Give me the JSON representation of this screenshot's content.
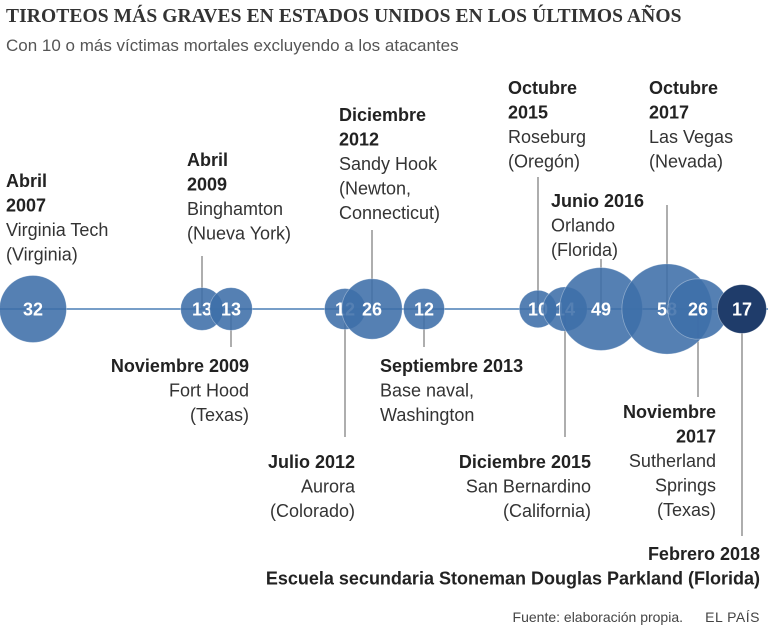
{
  "title": "TIROTEOS MÁS GRAVES EN ESTADOS UNIDOS EN LOS ÚLTIMOS AÑOS",
  "subtitle": "Con 10 o más víctimas mortales excluyendo a los atacantes",
  "footer": {
    "source": "Fuente: elaboración propia.",
    "brand": "EL PAÍS"
  },
  "colors": {
    "bubble": "#3d6ea8",
    "bubble_latest": "#1f3c6a",
    "line": "#4a7fb5",
    "leader": "#777777",
    "text": "#333333"
  },
  "chart_data": {
    "type": "bubble-timeline",
    "title": "TIROTEOS MÁS GRAVES EN ESTADOS UNIDOS EN LOS ÚLTIMOS AÑOS",
    "subtitle": "Con 10 o más víctimas mortales excluyendo a los atacantes",
    "events": [
      {
        "date": "Abril 2007",
        "date_lines": [
          "Abril",
          "2007"
        ],
        "place_lines": [
          "Virginia Tech",
          "(Virginia)"
        ],
        "value": 32,
        "label_pos": "above"
      },
      {
        "date": "Abril 2009",
        "date_lines": [
          "Abril",
          "2009"
        ],
        "place_lines": [
          "Binghamton",
          "(Nueva York)"
        ],
        "value": 13,
        "label_pos": "above"
      },
      {
        "date": "Noviembre 2009",
        "date_lines": [
          "Noviembre 2009"
        ],
        "place_lines": [
          "Fort Hood",
          "(Texas)"
        ],
        "value": 13,
        "label_pos": "below"
      },
      {
        "date": "Julio 2012",
        "date_lines": [
          "Julio 2012"
        ],
        "place_lines": [
          "Aurora",
          "(Colorado)"
        ],
        "value": 12,
        "label_pos": "below"
      },
      {
        "date": "Diciembre 2012",
        "date_lines": [
          "Diciembre",
          "2012"
        ],
        "place_lines": [
          "Sandy Hook",
          "(Newton,",
          "Connecticut)"
        ],
        "value": 26,
        "label_pos": "above"
      },
      {
        "date": "Septiembre 2013",
        "date_lines": [
          "Septiembre 2013"
        ],
        "place_lines": [
          "Base naval,",
          "Washington"
        ],
        "value": 12,
        "label_pos": "below"
      },
      {
        "date": "Octubre 2015",
        "date_lines": [
          "Octubre",
          "2015"
        ],
        "place_lines": [
          "Roseburg",
          "(Oregón)"
        ],
        "value": 10,
        "label_pos": "above"
      },
      {
        "date": "Diciembre 2015",
        "date_lines": [
          "Diciembre 2015"
        ],
        "place_lines": [
          "San Bernardino",
          "(California)"
        ],
        "value": 14,
        "label_pos": "below"
      },
      {
        "date": "Junio 2016",
        "date_lines": [
          "Junio 2016"
        ],
        "place_lines": [
          "Orlando",
          "(Florida)"
        ],
        "value": 49,
        "label_pos": "above"
      },
      {
        "date": "Octubre 2017",
        "date_lines": [
          "Octubre",
          "2017"
        ],
        "place_lines": [
          "Las Vegas",
          "(Nevada)"
        ],
        "value": 58,
        "label_pos": "above"
      },
      {
        "date": "Noviembre 2017",
        "date_lines": [
          "Noviembre",
          "2017"
        ],
        "place_lines": [
          "Sutherland",
          "Springs",
          "(Texas)"
        ],
        "value": 26,
        "label_pos": "below"
      },
      {
        "date": "Febrero 2018",
        "date_lines": [
          "Febrero 2018"
        ],
        "place_lines": [
          "Escuela secundaria Stoneman Douglas Parkland (Florida)"
        ],
        "value": 17,
        "label_pos": "below",
        "highlight": true
      }
    ]
  }
}
